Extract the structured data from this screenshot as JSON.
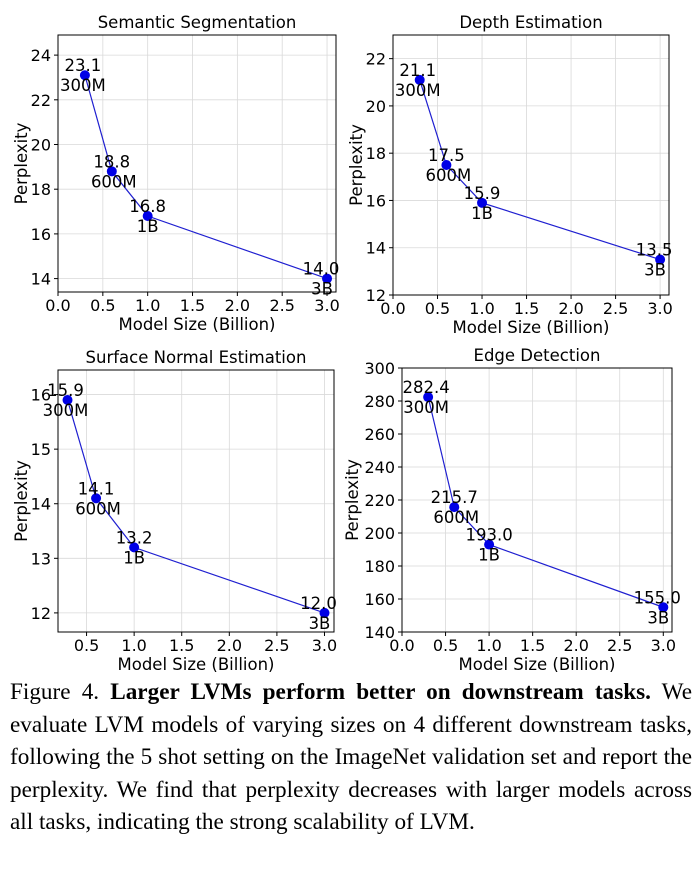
{
  "chart_data": [
    {
      "type": "line",
      "title": "Semantic Segmentation",
      "xlabel": "Model Size (Billion)",
      "ylabel": "Perplexity",
      "x": [
        0.3,
        0.6,
        1.0,
        3.0
      ],
      "values": [
        23.1,
        18.8,
        16.8,
        14.0
      ],
      "point_labels": [
        "23.1",
        "18.8",
        "16.8",
        "14.0"
      ],
      "size_labels": [
        "300M",
        "600M",
        "1B",
        "3B"
      ],
      "xlim": [
        0.0,
        3.1
      ],
      "ylim": [
        13.4,
        24.9
      ],
      "xticks": [
        "0.0",
        "0.5",
        "1.0",
        "1.5",
        "2.0",
        "2.5",
        "3.0"
      ],
      "yticks": [
        "14",
        "16",
        "18",
        "20",
        "22",
        "24"
      ],
      "grid": true,
      "color": "#1f1fd0"
    },
    {
      "type": "line",
      "title": "Depth Estimation",
      "xlabel": "Model Size (Billion)",
      "ylabel": "Perplexity",
      "x": [
        0.3,
        0.6,
        1.0,
        3.0
      ],
      "values": [
        21.1,
        17.5,
        15.9,
        13.5
      ],
      "point_labels": [
        "21.1",
        "17.5",
        "15.9",
        "13.5"
      ],
      "size_labels": [
        "300M",
        "600M",
        "1B",
        "3B"
      ],
      "xlim": [
        0.0,
        3.1
      ],
      "ylim": [
        12.0,
        23.0
      ],
      "xticks": [
        "0.0",
        "0.5",
        "1.0",
        "1.5",
        "2.0",
        "2.5",
        "3.0"
      ],
      "yticks": [
        "12",
        "14",
        "16",
        "18",
        "20",
        "22"
      ],
      "grid": true,
      "color": "#1f1fd0"
    },
    {
      "type": "line",
      "title": "Surface Normal Estimation",
      "xlabel": "Model Size (Billion)",
      "ylabel": "Perplexity",
      "x": [
        0.3,
        0.6,
        1.0,
        3.0
      ],
      "values": [
        15.9,
        14.1,
        13.2,
        12.0
      ],
      "point_labels": [
        "15.9",
        "14.1",
        "13.2",
        "12.0"
      ],
      "size_labels": [
        "300M",
        "600M",
        "1B",
        "3B"
      ],
      "xlim": [
        0.2,
        3.1
      ],
      "ylim": [
        11.65,
        16.45
      ],
      "xticks": [
        "0.5",
        "1.0",
        "1.5",
        "2.0",
        "2.5",
        "3.0"
      ],
      "yticks": [
        "12",
        "13",
        "14",
        "15",
        "16"
      ],
      "grid": true,
      "color": "#1f1fd0"
    },
    {
      "type": "line",
      "title": "Edge Detection",
      "xlabel": "Model Size (Billion)",
      "ylabel": "Perplexity",
      "x": [
        0.3,
        0.6,
        1.0,
        3.0
      ],
      "values": [
        282.4,
        215.7,
        193.0,
        155.0
      ],
      "point_labels": [
        "282.4",
        "215.7",
        "193.0",
        "155.0"
      ],
      "size_labels": [
        "300M",
        "600M",
        "1B",
        "3B"
      ],
      "xlim": [
        0.0,
        3.1
      ],
      "ylim": [
        140,
        300
      ],
      "xticks": [
        "0.0",
        "0.5",
        "1.0",
        "1.5",
        "2.0",
        "2.5",
        "3.0"
      ],
      "yticks": [
        "140",
        "160",
        "180",
        "200",
        "220",
        "240",
        "260",
        "280",
        "300"
      ],
      "grid": true,
      "color": "#1f1fd0"
    }
  ],
  "caption": {
    "label": "Figure 4.",
    "title": "Larger LVMs perform better on downstream tasks.",
    "body": "We evaluate LVM models of varying sizes on 4 different downstream tasks, following the 5 shot setting on the ImageNet validation set and report the perplexity. We find that perplexity decreases with larger models across all tasks, indicating the strong scalability of LVM."
  }
}
